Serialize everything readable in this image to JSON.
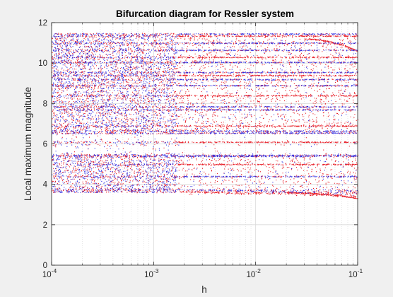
{
  "chart_data": {
    "type": "scatter",
    "title": "Bifurcation diagram for Ressler system",
    "xlabel": "h",
    "ylabel": "Local maximum magnitude",
    "xscale": "log",
    "xlim": [
      0.0001,
      0.1
    ],
    "ylim": [
      0,
      12
    ],
    "x_tick_labels": [
      {
        "base": "10",
        "exp": "-4",
        "value": 0.0001
      },
      {
        "base": "10",
        "exp": "-3",
        "value": 0.001
      },
      {
        "base": "10",
        "exp": "-2",
        "value": 0.01
      },
      {
        "base": "10",
        "exp": "-1",
        "value": 0.1
      }
    ],
    "y_ticks": [
      0,
      2,
      4,
      6,
      8,
      10,
      12
    ],
    "grid": true,
    "minor_grid": true,
    "legend": "none",
    "colors": {
      "series_red": "#e8202a",
      "series_blue": "#1f1fe0",
      "axes_background": "#ffffff",
      "figure_background": "#f0f0f0",
      "axis_color": "#262626",
      "grid_color": "#d9d9d9"
    },
    "regions": [
      {
        "description": "dense chaotic band",
        "x_range": [
          0.0001,
          0.0017
        ],
        "y_range": [
          3.6,
          11.45
        ]
      },
      {
        "description": "periodic bands",
        "x_range": [
          0.0017,
          0.1
        ],
        "y_range": [
          3.4,
          11.45
        ]
      }
    ],
    "prominent_levels": [
      3.65,
      3.75,
      4.4,
      5.0,
      5.4,
      5.45,
      6.1,
      6.55,
      6.65,
      6.9,
      7.7,
      7.85,
      8.4,
      8.9,
      9.2,
      9.4,
      9.55,
      10.05,
      10.3,
      10.65,
      11.0,
      11.35,
      11.45
    ],
    "gaps": [
      [
        6.0,
        6.5
      ],
      [
        5.55,
        5.95
      ]
    ]
  }
}
